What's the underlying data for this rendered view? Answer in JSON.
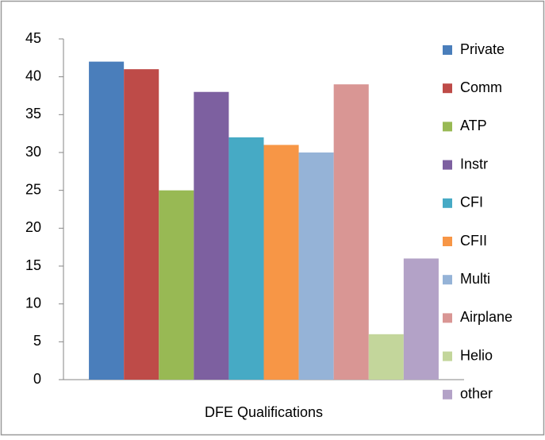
{
  "chart_data": {
    "type": "bar",
    "categories": [
      "DFE Qualifications"
    ],
    "series": [
      {
        "name": "Private",
        "color": "#4a7ebb",
        "values": [
          42
        ]
      },
      {
        "name": "Comm",
        "color": "#be4b48",
        "values": [
          41
        ]
      },
      {
        "name": "ATP",
        "color": "#98b954",
        "values": [
          25
        ]
      },
      {
        "name": "Instr",
        "color": "#7d60a0",
        "values": [
          38
        ]
      },
      {
        "name": "CFI",
        "color": "#46aac5",
        "values": [
          32
        ]
      },
      {
        "name": "CFII",
        "color": "#f79646",
        "values": [
          31
        ]
      },
      {
        "name": "Multi",
        "color": "#95b3d7",
        "values": [
          30
        ]
      },
      {
        "name": "Airplane",
        "color": "#d99694",
        "values": [
          39
        ]
      },
      {
        "name": "Helio",
        "color": "#c3d69b",
        "values": [
          6
        ]
      },
      {
        "name": "other",
        "color": "#b3a2c7",
        "values": [
          16
        ]
      }
    ],
    "ylim": [
      0,
      45
    ],
    "yticks": [
      0,
      5,
      10,
      15,
      20,
      25,
      30,
      35,
      40,
      45
    ],
    "grid": false,
    "legend": "right"
  }
}
